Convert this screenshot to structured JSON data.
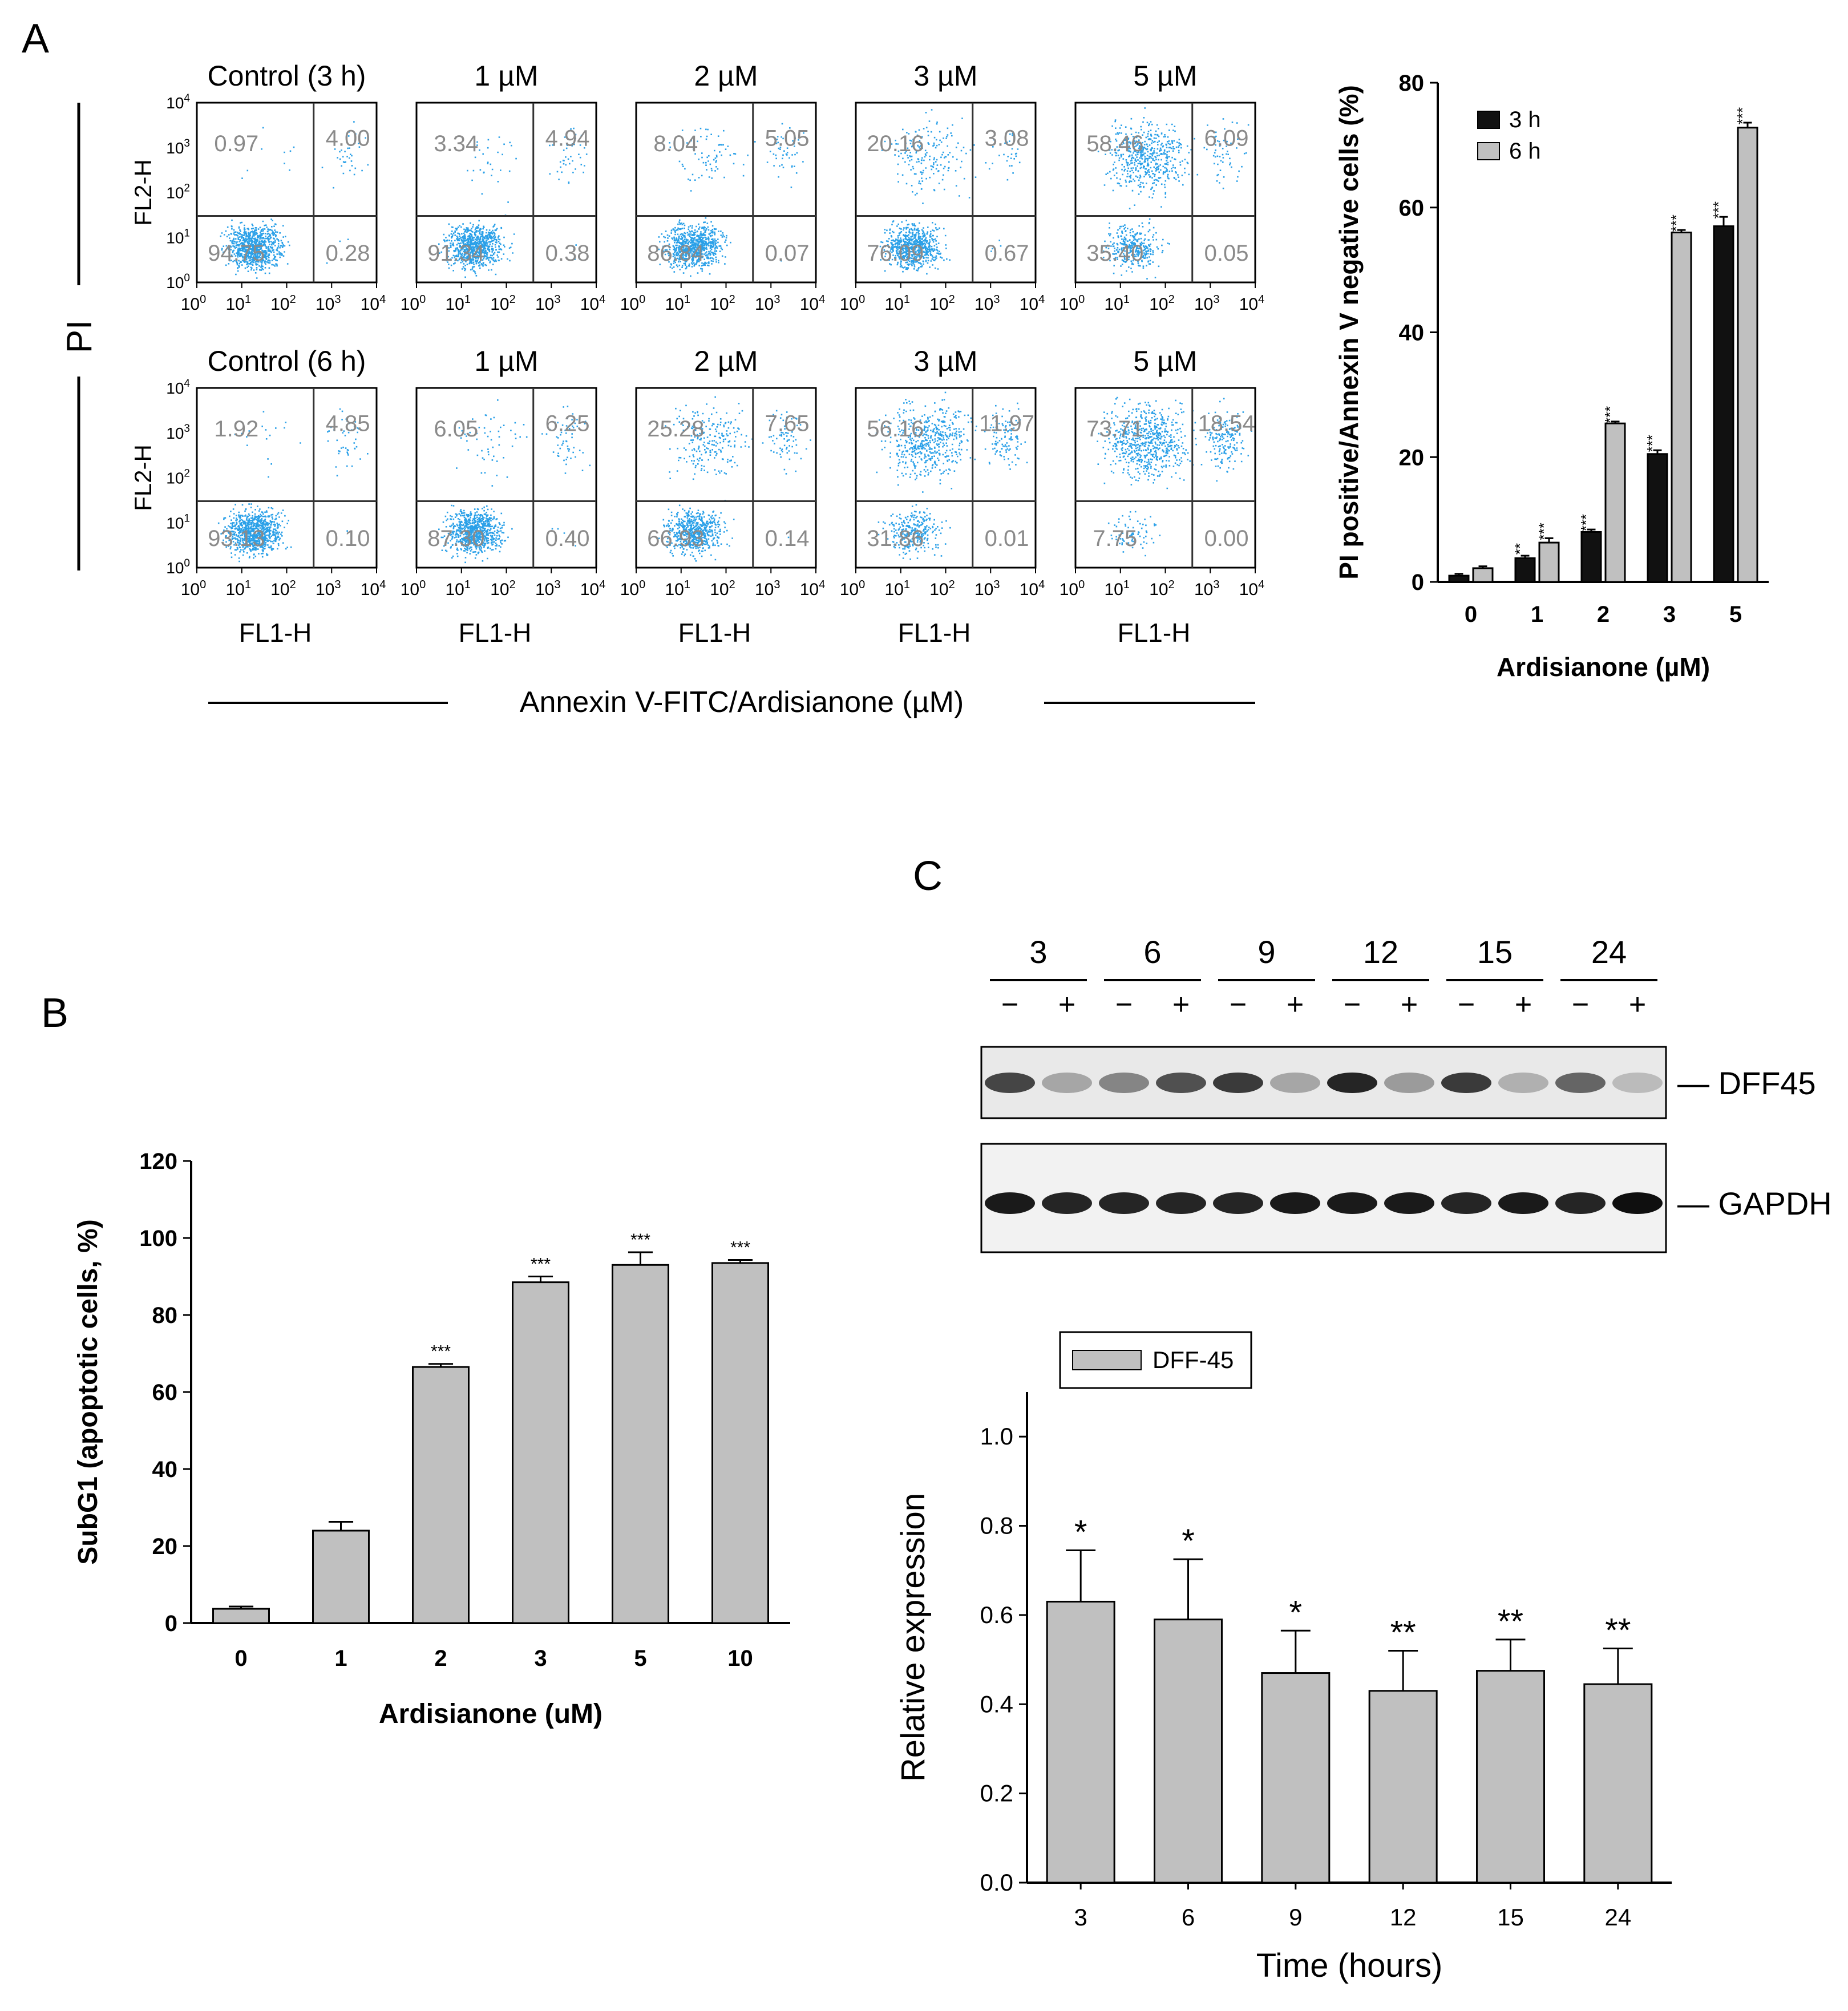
{
  "panel_labels": {
    "a": "A",
    "b": "B",
    "c": "C"
  },
  "colors": {
    "dots": "#2aa0e8",
    "bar_black": "#111111",
    "bar_gray": "#c0c0c0",
    "quadrant_text": "#8a8a8a"
  },
  "flow": {
    "y_axis_label": "PI",
    "bottom_label": "Annexin V-FITC/Ardisianone (µM)",
    "x_axis_title": "FL1-H",
    "y_axis_title": "FL2-H",
    "tick_base": "10",
    "tick_exps": [
      "0",
      "1",
      "2",
      "3",
      "4"
    ],
    "rows": [
      {
        "plots": [
          {
            "title": "Control  (3 h)",
            "q": [
              "0.97",
              "4.00",
              "94.75",
              "0.28"
            ]
          },
          {
            "title": "1 µM",
            "q": [
              "3.34",
              "4.94",
              "91.34",
              "0.38"
            ]
          },
          {
            "title": "2 µM",
            "q": [
              "8.04",
              "5.05",
              "86.84",
              "0.07"
            ]
          },
          {
            "title": "3 µM",
            "q": [
              "20.16",
              "3.08",
              "76.09",
              "0.67"
            ]
          },
          {
            "title": "5 µM",
            "q": [
              "58.46",
              "6.09",
              "35.40",
              "0.05"
            ]
          }
        ]
      },
      {
        "plots": [
          {
            "title": "Control  (6 h)",
            "q": [
              "1.92",
              "4.85",
              "93.13",
              "0.10"
            ]
          },
          {
            "title": "1 µM",
            "q": [
              "6.05",
              "6.25",
              "87.30",
              "0.40"
            ]
          },
          {
            "title": "2 µM",
            "q": [
              "25.28",
              "7.65",
              "66.93",
              "0.14"
            ]
          },
          {
            "title": "3 µM",
            "q": [
              "56.16",
              "11.97",
              "31.86",
              "0.01"
            ]
          },
          {
            "title": "5 µM",
            "q": [
              "73.71",
              "18.54",
              "7.75",
              "0.00"
            ]
          }
        ]
      }
    ]
  },
  "chart_data": [
    {
      "type": "bar",
      "ylabel": "PI positive/Annexin V negative cells (%)",
      "xlabel": "Ardisianone (µM)",
      "categories": [
        "0",
        "1",
        "2",
        "3",
        "5"
      ],
      "ylim": [
        0,
        80
      ],
      "yticks": [
        "0",
        "20",
        "40",
        "60",
        "80"
      ],
      "series": [
        {
          "name": "3 h",
          "color": "#111111",
          "values": [
            1.0,
            3.8,
            8.0,
            20.5,
            57.0
          ],
          "errors": [
            0.3,
            0.4,
            0.4,
            0.6,
            1.5
          ],
          "stars": [
            "",
            "**",
            "***",
            "***",
            "***"
          ]
        },
        {
          "name": "6 h",
          "color": "#c0c0c0",
          "values": [
            2.2,
            6.3,
            25.4,
            56.0,
            72.8
          ],
          "errors": [
            0.3,
            0.7,
            0.3,
            0.4,
            0.8
          ],
          "stars": [
            "",
            "***",
            "***",
            "***",
            "***"
          ]
        }
      ]
    },
    {
      "type": "bar",
      "ylabel": "SubG1 (apoptotic cells, %)",
      "xlabel": "Ardisianone (uM)",
      "categories": [
        "0",
        "1",
        "2",
        "3",
        "5",
        "10"
      ],
      "values": [
        3.7,
        24.0,
        66.5,
        88.5,
        93.0,
        93.5
      ],
      "errors": [
        0.6,
        2.3,
        0.8,
        1.5,
        3.3,
        0.8
      ],
      "stars": [
        "",
        "",
        "***",
        "***",
        "***",
        "***"
      ],
      "ylim": [
        0,
        120
      ],
      "yticks": [
        "0",
        "20",
        "40",
        "60",
        "80",
        "100",
        "120"
      ]
    },
    {
      "type": "bar",
      "ylabel": "Relative expression",
      "xlabel": "Time (hours)",
      "categories": [
        "3",
        "6",
        "9",
        "12",
        "15",
        "24"
      ],
      "series": [
        {
          "name": "DFF-45",
          "values": [
            0.63,
            0.59,
            0.47,
            0.43,
            0.475,
            0.445
          ],
          "errors": [
            0.115,
            0.135,
            0.095,
            0.09,
            0.07,
            0.08
          ]
        }
      ],
      "stars": [
        "*",
        "*",
        "*",
        "**",
        "**",
        "**"
      ],
      "ylim": [
        0,
        1.1
      ],
      "yticks": [
        "0.0",
        "0.2",
        "0.4",
        "0.6",
        "0.8",
        "1.0"
      ]
    }
  ],
  "blot": {
    "time_labels": [
      "3",
      "6",
      "9",
      "12",
      "15",
      "24"
    ],
    "minus": "−",
    "plus": "+",
    "bands": [
      {
        "label": "— DFF45",
        "intensity": [
          0.75,
          0.3,
          0.45,
          0.7,
          0.8,
          0.3,
          0.9,
          0.35,
          0.8,
          0.25,
          0.6,
          0.2
        ]
      },
      {
        "label": "— GAPDH",
        "intensity": [
          0.95,
          0.9,
          0.9,
          0.9,
          0.9,
          0.95,
          0.95,
          0.95,
          0.9,
          0.95,
          0.9,
          1.0
        ]
      }
    ]
  }
}
